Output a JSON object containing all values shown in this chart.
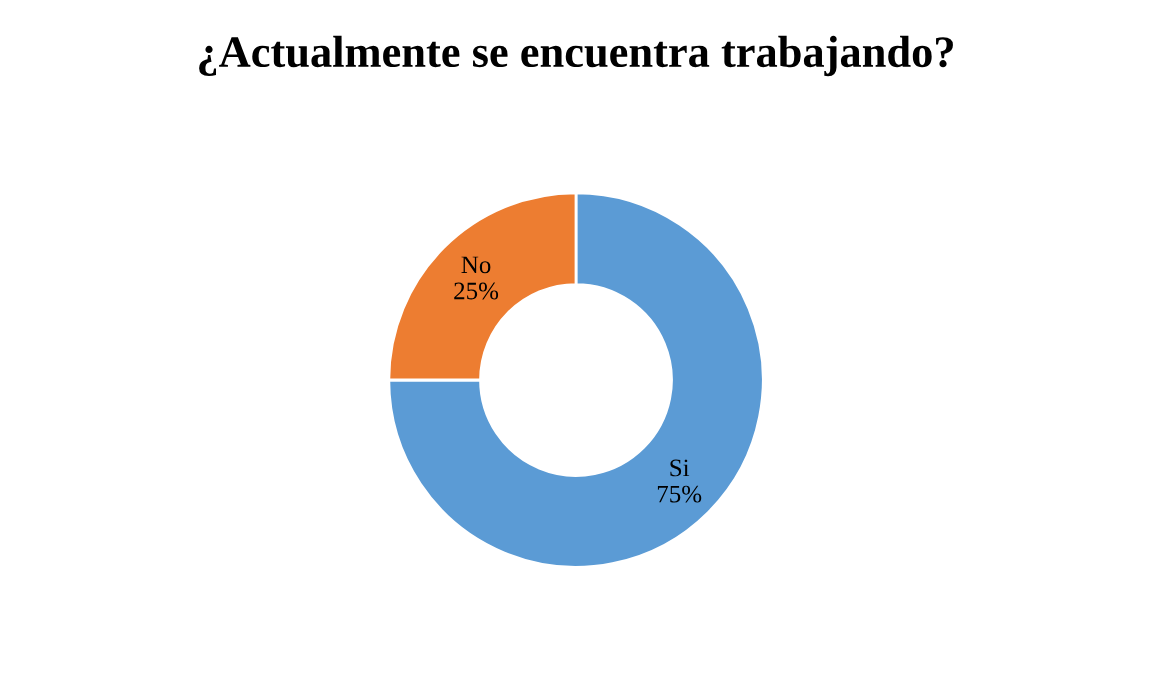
{
  "chart_data": {
    "type": "donut",
    "title": "¿Actualmente se encuentra trabajando?",
    "categories": [
      "Si",
      "No"
    ],
    "values": [
      75,
      25
    ],
    "value_labels": [
      "75%",
      "25%"
    ],
    "colors": [
      "#5b9bd5",
      "#ed7d31"
    ],
    "legend": false
  }
}
